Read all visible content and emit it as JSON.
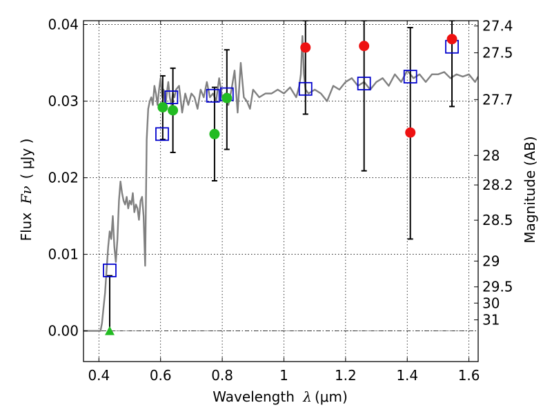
{
  "chart_data": {
    "type": "scatter",
    "xlabel": {
      "prefix": "Wavelength",
      "symbol": "λ",
      "unit": "(μm)"
    },
    "ylabel": {
      "prefix": "Flux",
      "symbol": "Fν",
      "unit": "( μJy )"
    },
    "ylabel_right": "Magnitude (AB)",
    "xlim": [
      0.35,
      1.63
    ],
    "ylim": [
      -0.004,
      0.0405
    ],
    "grid": true,
    "x_ticks": [
      0.4,
      0.6,
      0.8,
      1.0,
      1.2,
      1.4,
      1.6
    ],
    "x_tick_labels": [
      "0.4",
      "0.6",
      "0.8",
      "1",
      "1.2",
      "1.4",
      "1.6"
    ],
    "y_ticks": [
      0.0,
      0.01,
      0.02,
      0.03,
      0.04
    ],
    "y_tick_labels": [
      "0.00",
      "0.01",
      "0.02",
      "0.03",
      "0.04"
    ],
    "right_axis": {
      "labels": [
        "27.4",
        "27.5",
        "27.7",
        "28",
        "28.2",
        "28.5",
        "29",
        "29.5",
        "30",
        "31"
      ],
      "values": [
        27.4,
        27.5,
        27.7,
        28.0,
        28.2,
        28.5,
        29.0,
        29.5,
        30.0,
        31.0
      ]
    },
    "colors": {
      "model": "#808080",
      "model_points": "#0000cc",
      "optical": "#22bb22",
      "infrared": "#ee1111",
      "errorbar": "#000000",
      "zero_line": "#000000"
    },
    "series": [
      {
        "marker": "line",
        "x": [
          0.35,
          0.405,
          0.41,
          0.415,
          0.42,
          0.425,
          0.43,
          0.435,
          0.44,
          0.445,
          0.45,
          0.455,
          0.46,
          0.465,
          0.47,
          0.475,
          0.48,
          0.485,
          0.49,
          0.495,
          0.5,
          0.505,
          0.51,
          0.515,
          0.52,
          0.525,
          0.53,
          0.535,
          0.54,
          0.545,
          0.55,
          0.555,
          0.56,
          0.565,
          0.57,
          0.575,
          0.58,
          0.585,
          0.59,
          0.595,
          0.6,
          0.605,
          0.61,
          0.615,
          0.62,
          0.625,
          0.63,
          0.635,
          0.64,
          0.645,
          0.65,
          0.66,
          0.67,
          0.68,
          0.69,
          0.7,
          0.71,
          0.72,
          0.73,
          0.74,
          0.75,
          0.76,
          0.77,
          0.78,
          0.79,
          0.8,
          0.81,
          0.82,
          0.83,
          0.84,
          0.85,
          0.86,
          0.87,
          0.88,
          0.89,
          0.9,
          0.92,
          0.94,
          0.96,
          0.98,
          1.0,
          1.02,
          1.04,
          1.05,
          1.055,
          1.06,
          1.065,
          1.07,
          1.08,
          1.1,
          1.12,
          1.14,
          1.16,
          1.18,
          1.2,
          1.22,
          1.24,
          1.26,
          1.28,
          1.3,
          1.32,
          1.34,
          1.36,
          1.38,
          1.4,
          1.42,
          1.44,
          1.46,
          1.48,
          1.5,
          1.52,
          1.54,
          1.56,
          1.58,
          1.6,
          1.62,
          1.63
        ],
        "y": [
          0.0,
          0.0,
          0.001,
          0.003,
          0.005,
          0.008,
          0.011,
          0.013,
          0.012,
          0.015,
          0.011,
          0.009,
          0.012,
          0.017,
          0.0195,
          0.018,
          0.017,
          0.0165,
          0.0175,
          0.016,
          0.017,
          0.0165,
          0.018,
          0.0155,
          0.0165,
          0.016,
          0.0145,
          0.017,
          0.0175,
          0.015,
          0.0085,
          0.025,
          0.029,
          0.03,
          0.0305,
          0.0295,
          0.032,
          0.031,
          0.0295,
          0.0315,
          0.033,
          0.0305,
          0.0315,
          0.029,
          0.031,
          0.0325,
          0.0305,
          0.0295,
          0.031,
          0.0305,
          0.0315,
          0.032,
          0.0285,
          0.031,
          0.0295,
          0.031,
          0.0305,
          0.029,
          0.0315,
          0.0305,
          0.0325,
          0.0305,
          0.031,
          0.03,
          0.033,
          0.0305,
          0.031,
          0.0295,
          0.0315,
          0.034,
          0.0285,
          0.035,
          0.0305,
          0.03,
          0.029,
          0.0315,
          0.0305,
          0.031,
          0.031,
          0.0315,
          0.031,
          0.0318,
          0.0305,
          0.032,
          0.0335,
          0.0385,
          0.0335,
          0.0315,
          0.031,
          0.0315,
          0.031,
          0.03,
          0.032,
          0.0315,
          0.0325,
          0.033,
          0.032,
          0.0325,
          0.0315,
          0.0325,
          0.033,
          0.032,
          0.0335,
          0.0325,
          0.034,
          0.033,
          0.0335,
          0.0325,
          0.0335,
          0.0335,
          0.0338,
          0.033,
          0.0335,
          0.0332,
          0.0335,
          0.0325,
          0.0332
        ]
      },
      {
        "marker": "open-square",
        "x": [
          0.435,
          0.605,
          0.635,
          0.77,
          0.815,
          1.07,
          1.26,
          1.41,
          1.545
        ],
        "y": [
          0.0079,
          0.0257,
          0.0305,
          0.0307,
          0.0309,
          0.0316,
          0.0323,
          0.0332,
          0.0371
        ]
      },
      {
        "marker": "filled-circle",
        "x": [
          0.607,
          0.64,
          0.775,
          0.815
        ],
        "y": [
          0.0292,
          0.0288,
          0.0257,
          0.0304
        ],
        "yerr": [
          [
            0.025,
            0.0333
          ],
          [
            0.0233,
            0.0343
          ],
          [
            0.0196,
            0.0318
          ],
          [
            0.0237,
            0.0367
          ]
        ]
      },
      {
        "marker": "filled-triangle",
        "x": [
          0.435
        ],
        "y": [
          0.0
        ],
        "yerr": [
          [
            -0.0003,
            0.0072
          ]
        ]
      },
      {
        "marker": "filled-circle",
        "x": [
          1.07,
          1.26,
          1.41,
          1.545
        ],
        "y": [
          0.037,
          0.0372,
          0.0259,
          0.0381
        ],
        "yerr": [
          [
            0.0283,
            0.0405
          ],
          [
            0.0209,
            0.0405
          ],
          [
            0.012,
            0.0396
          ],
          [
            0.0293,
            0.0405
          ]
        ]
      }
    ]
  }
}
